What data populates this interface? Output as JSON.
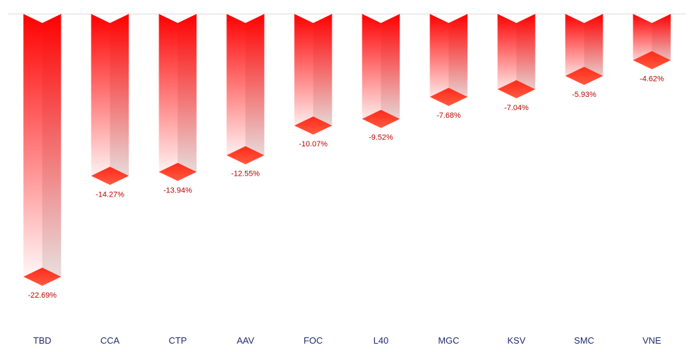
{
  "chart_data": {
    "type": "bar",
    "orientation": "vertical-3d-negative",
    "title": "",
    "xlabel": "",
    "ylabel": "",
    "categories": [
      "TBD",
      "CCA",
      "CTP",
      "AAV",
      "FOC",
      "L40",
      "MGC",
      "KSV",
      "SMC",
      "VNE"
    ],
    "values": [
      -22.69,
      -14.27,
      -13.94,
      -12.55,
      -10.07,
      -9.52,
      -7.68,
      -7.04,
      -5.93,
      -4.62
    ],
    "value_labels": [
      "-22.69%",
      "-14.27%",
      "-13.94%",
      "-12.55%",
      "-10.07%",
      "-9.52%",
      "-7.68%",
      "-7.04%",
      "-5.93%",
      "-4.62%"
    ],
    "ylim": [
      -25,
      0
    ],
    "grid": false,
    "legend": "none",
    "colors": {
      "bar_top": "#ff0000",
      "bar_bottom": "#ffffff",
      "side_gray": "#e6e6e6",
      "base_cap": "#ff2a1a",
      "value_label": "#c00000",
      "category_label": "#1f2a6e",
      "baseline": "#d9d9d9"
    }
  }
}
